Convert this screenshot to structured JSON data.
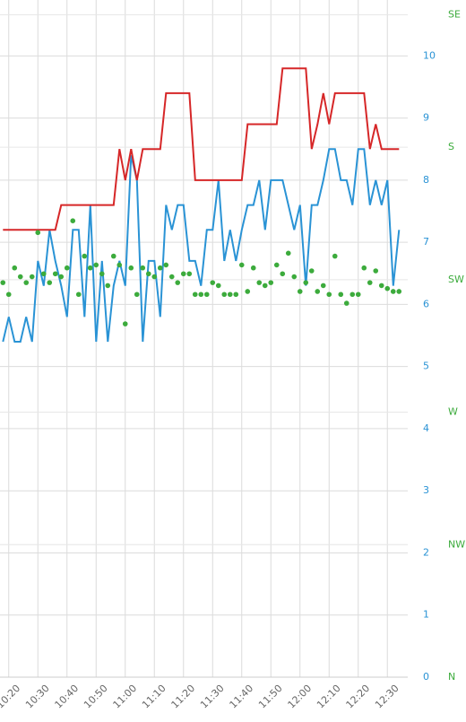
{
  "chart_data": {
    "type": "line",
    "x": [
      "10:18",
      "10:20",
      "10:22",
      "10:24",
      "10:26",
      "10:28",
      "10:30",
      "10:32",
      "10:34",
      "10:36",
      "10:38",
      "10:40",
      "10:42",
      "10:44",
      "10:46",
      "10:48",
      "10:50",
      "10:52",
      "10:54",
      "10:56",
      "10:58",
      "11:00",
      "11:02",
      "11:04",
      "11:06",
      "11:08",
      "11:10",
      "11:12",
      "11:14",
      "11:16",
      "11:18",
      "11:20",
      "11:22",
      "11:24",
      "11:26",
      "11:28",
      "11:30",
      "11:32",
      "11:34",
      "11:36",
      "11:38",
      "11:40",
      "11:42",
      "11:44",
      "11:46",
      "11:48",
      "11:50",
      "11:52",
      "11:54",
      "11:56",
      "11:58",
      "12:00",
      "12:02",
      "12:04",
      "12:06",
      "12:08",
      "12:10",
      "12:12",
      "12:14",
      "12:16",
      "12:18",
      "12:20",
      "12:22",
      "12:24",
      "12:26",
      "12:28",
      "12:30",
      "12:32",
      "12:34"
    ],
    "series": [
      {
        "color": "#2a93d5",
        "mode": "line",
        "values": [
          5.4,
          5.8,
          5.4,
          5.4,
          5.8,
          5.4,
          6.7,
          6.3,
          7.2,
          6.7,
          6.3,
          5.8,
          7.2,
          7.2,
          5.8,
          7.6,
          5.4,
          6.7,
          5.4,
          6.3,
          6.7,
          6.3,
          8.4,
          8.0,
          5.4,
          6.7,
          6.7,
          5.8,
          7.6,
          7.2,
          7.6,
          7.6,
          6.7,
          6.7,
          6.3,
          7.2,
          7.2,
          8.0,
          6.7,
          7.2,
          6.7,
          7.2,
          7.6,
          7.6,
          8.0,
          7.2,
          8.0,
          8.0,
          8.0,
          7.6,
          7.2,
          7.6,
          6.3,
          7.6,
          7.6,
          8.0,
          8.5,
          8.5,
          8.0,
          8.0,
          7.6,
          8.5,
          8.5,
          7.6,
          8.0,
          7.6,
          8.0,
          6.3,
          7.2
        ]
      },
      {
        "color": "#d62728",
        "mode": "line",
        "values": [
          7.2,
          7.2,
          7.2,
          7.2,
          7.2,
          7.2,
          7.2,
          7.2,
          7.2,
          7.2,
          7.6,
          7.6,
          7.6,
          7.6,
          7.6,
          7.6,
          7.6,
          7.6,
          7.6,
          7.6,
          8.5,
          8.0,
          8.5,
          8.0,
          8.5,
          8.5,
          8.5,
          8.5,
          9.4,
          9.4,
          9.4,
          9.4,
          9.4,
          8.0,
          8.0,
          8.0,
          8.0,
          8.0,
          8.0,
          8.0,
          8.0,
          8.0,
          8.9,
          8.9,
          8.9,
          8.9,
          8.9,
          8.9,
          9.8,
          9.8,
          9.8,
          9.8,
          9.8,
          8.5,
          8.9,
          9.4,
          8.9,
          9.4,
          9.4,
          9.4,
          9.4,
          9.4,
          9.4,
          8.5,
          8.9,
          8.5,
          8.5,
          8.5,
          8.5
        ]
      },
      {
        "color": "#3cab3c",
        "mode": "markers",
        "axis": "y2",
        "values": [
          226,
          230,
          221,
          224,
          226,
          224,
          209,
          223,
          226,
          223,
          224,
          221,
          205,
          230,
          217,
          221,
          220,
          223,
          227,
          217,
          220,
          240,
          221,
          230,
          221,
          223,
          224,
          221,
          220,
          224,
          226,
          223,
          223,
          230,
          230,
          230,
          226,
          227,
          230,
          230,
          230,
          220,
          229,
          221,
          226,
          227,
          226,
          220,
          223,
          216,
          224,
          229,
          226,
          222,
          229,
          227,
          230,
          217,
          230,
          233,
          230,
          230,
          221,
          226,
          222,
          227,
          228,
          229,
          229
        ]
      }
    ],
    "xlim": [
      "10:17",
      "12:37"
    ],
    "xticks": [
      "10:20",
      "10:30",
      "10:40",
      "10:50",
      "11:00",
      "11:10",
      "11:20",
      "11:30",
      "11:40",
      "11:50",
      "12:00",
      "12:10",
      "12:20",
      "12:30"
    ],
    "ylim": [
      0,
      10.9
    ],
    "yticks": [
      0,
      1,
      2,
      3,
      4,
      5,
      6,
      7,
      8,
      9,
      10
    ],
    "y2lim": [
      360,
      130
    ],
    "y2ticks": [
      {
        "value": 360,
        "label": "N"
      },
      {
        "value": 315,
        "label": "NW"
      },
      {
        "value": 270,
        "label": "W"
      },
      {
        "value": 225,
        "label": "SW"
      },
      {
        "value": 180,
        "label": "S"
      },
      {
        "value": 135,
        "label": "SE"
      }
    ],
    "grid": true
  }
}
